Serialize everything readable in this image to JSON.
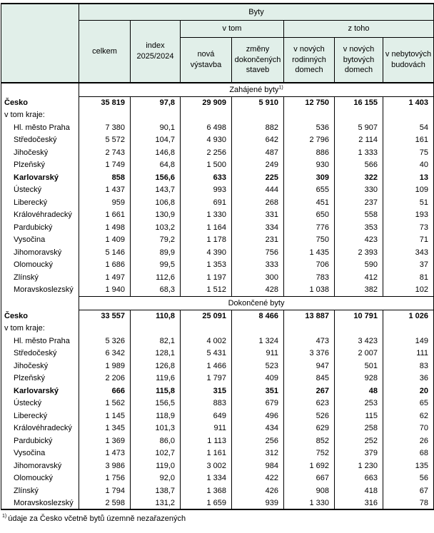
{
  "chart_data": {
    "type": "table",
    "header": {
      "byty": "Byty",
      "celkem": "celkem",
      "index": "index\n2025/2024",
      "v_tom": "v tom",
      "z_toho": "z toho",
      "cols": [
        "nová\nvýstavba",
        "změny\ndokončených\nstaveb",
        "v nových\nrodinných\ndomech",
        "v nových\nbytových\ndomech",
        "v nebytových\nbudovách"
      ]
    },
    "sections": [
      {
        "title": "Zahájené byty",
        "title_sup": "1)",
        "rows": [
          {
            "label": "Česko",
            "bold": true,
            "indent": 0,
            "values": [
              "35 819",
              "97,8",
              "29 909",
              "5 910",
              "12 750",
              "16 155",
              "1 403"
            ]
          },
          {
            "label": "v tom kraje:",
            "bold": false,
            "indent": 0,
            "values": [
              "",
              "",
              "",
              "",
              "",
              "",
              ""
            ]
          },
          {
            "label": "Hl. město Praha",
            "bold": false,
            "indent": 1,
            "values": [
              "7 380",
              "90,1",
              "6 498",
              "882",
              "536",
              "5 907",
              "54"
            ]
          },
          {
            "label": "Středočeský",
            "bold": false,
            "indent": 1,
            "values": [
              "5 572",
              "104,7",
              "4 930",
              "642",
              "2 796",
              "2 114",
              "161"
            ]
          },
          {
            "label": "Jihočeský",
            "bold": false,
            "indent": 1,
            "values": [
              "2 743",
              "146,8",
              "2 256",
              "487",
              "886",
              "1 333",
              "75"
            ]
          },
          {
            "label": "Plzeňský",
            "bold": false,
            "indent": 1,
            "values": [
              "1 749",
              "64,8",
              "1 500",
              "249",
              "930",
              "566",
              "40"
            ]
          },
          {
            "label": "Karlovarský",
            "bold": true,
            "indent": 1,
            "values": [
              "858",
              "156,6",
              "633",
              "225",
              "309",
              "322",
              "13"
            ]
          },
          {
            "label": "Ústecký",
            "bold": false,
            "indent": 1,
            "values": [
              "1 437",
              "143,7",
              "993",
              "444",
              "655",
              "330",
              "109"
            ]
          },
          {
            "label": "Liberecký",
            "bold": false,
            "indent": 1,
            "values": [
              "959",
              "106,8",
              "691",
              "268",
              "451",
              "237",
              "51"
            ]
          },
          {
            "label": "Královéhradecký",
            "bold": false,
            "indent": 1,
            "values": [
              "1 661",
              "130,9",
              "1 330",
              "331",
              "650",
              "558",
              "193"
            ]
          },
          {
            "label": "Pardubický",
            "bold": false,
            "indent": 1,
            "values": [
              "1 498",
              "103,2",
              "1 164",
              "334",
              "776",
              "353",
              "73"
            ]
          },
          {
            "label": "Vysočina",
            "bold": false,
            "indent": 1,
            "values": [
              "1 409",
              "79,2",
              "1 178",
              "231",
              "750",
              "423",
              "71"
            ]
          },
          {
            "label": "Jihomoravský",
            "bold": false,
            "indent": 1,
            "values": [
              "5 146",
              "89,9",
              "4 390",
              "756",
              "1 435",
              "2 393",
              "343"
            ]
          },
          {
            "label": "Olomoucký",
            "bold": false,
            "indent": 1,
            "values": [
              "1 686",
              "99,5",
              "1 353",
              "333",
              "706",
              "590",
              "37"
            ]
          },
          {
            "label": "Zlínský",
            "bold": false,
            "indent": 1,
            "values": [
              "1 497",
              "112,6",
              "1 197",
              "300",
              "783",
              "412",
              "81"
            ]
          },
          {
            "label": "Moravskoslezský",
            "bold": false,
            "indent": 1,
            "values": [
              "1 940",
              "68,3",
              "1 512",
              "428",
              "1 038",
              "382",
              "102"
            ]
          }
        ]
      },
      {
        "title": "Dokončené byty",
        "title_sup": "",
        "rows": [
          {
            "label": "Česko",
            "bold": true,
            "indent": 0,
            "values": [
              "33 557",
              "110,8",
              "25 091",
              "8 466",
              "13 887",
              "10 791",
              "1 026"
            ]
          },
          {
            "label": "v tom kraje:",
            "bold": false,
            "indent": 0,
            "values": [
              "",
              "",
              "",
              "",
              "",
              "",
              ""
            ]
          },
          {
            "label": "Hl. město Praha",
            "bold": false,
            "indent": 1,
            "values": [
              "5 326",
              "82,1",
              "4 002",
              "1 324",
              "473",
              "3 423",
              "149"
            ]
          },
          {
            "label": "Středočeský",
            "bold": false,
            "indent": 1,
            "values": [
              "6 342",
              "128,1",
              "5 431",
              "911",
              "3 376",
              "2 007",
              "111"
            ]
          },
          {
            "label": "Jihočeský",
            "bold": false,
            "indent": 1,
            "values": [
              "1 989",
              "126,8",
              "1 466",
              "523",
              "947",
              "501",
              "83"
            ]
          },
          {
            "label": "Plzeňský",
            "bold": false,
            "indent": 1,
            "values": [
              "2 206",
              "119,6",
              "1 797",
              "409",
              "845",
              "928",
              "36"
            ]
          },
          {
            "label": "Karlovarský",
            "bold": true,
            "indent": 1,
            "values": [
              "666",
              "115,8",
              "315",
              "351",
              "267",
              "48",
              "20"
            ]
          },
          {
            "label": "Ústecký",
            "bold": false,
            "indent": 1,
            "values": [
              "1 562",
              "156,5",
              "883",
              "679",
              "623",
              "253",
              "65"
            ]
          },
          {
            "label": "Liberecký",
            "bold": false,
            "indent": 1,
            "values": [
              "1 145",
              "118,9",
              "649",
              "496",
              "526",
              "115",
              "62"
            ]
          },
          {
            "label": "Královéhradecký",
            "bold": false,
            "indent": 1,
            "values": [
              "1 345",
              "101,3",
              "911",
              "434",
              "629",
              "258",
              "70"
            ]
          },
          {
            "label": "Pardubický",
            "bold": false,
            "indent": 1,
            "values": [
              "1 369",
              "86,0",
              "1 113",
              "256",
              "852",
              "252",
              "26"
            ]
          },
          {
            "label": "Vysočina",
            "bold": false,
            "indent": 1,
            "values": [
              "1 473",
              "102,7",
              "1 161",
              "312",
              "752",
              "379",
              "68"
            ]
          },
          {
            "label": "Jihomoravský",
            "bold": false,
            "indent": 1,
            "values": [
              "3 986",
              "119,0",
              "3 002",
              "984",
              "1 692",
              "1 230",
              "135"
            ]
          },
          {
            "label": "Olomoucký",
            "bold": false,
            "indent": 1,
            "values": [
              "1 756",
              "92,0",
              "1 334",
              "422",
              "667",
              "663",
              "56"
            ]
          },
          {
            "label": "Zlínský",
            "bold": false,
            "indent": 1,
            "values": [
              "1 794",
              "138,7",
              "1 368",
              "426",
              "908",
              "418",
              "67"
            ]
          },
          {
            "label": "Moravskoslezský",
            "bold": false,
            "indent": 1,
            "values": [
              "2 598",
              "131,2",
              "1 659",
              "939",
              "1 330",
              "316",
              "78"
            ]
          }
        ]
      }
    ],
    "footnote": {
      "sup": "1)",
      "text": "údaje za Česko včetně bytů územně nezařazených"
    },
    "colors": {
      "header_bg": "#e1efe9",
      "border": "#000000"
    }
  }
}
